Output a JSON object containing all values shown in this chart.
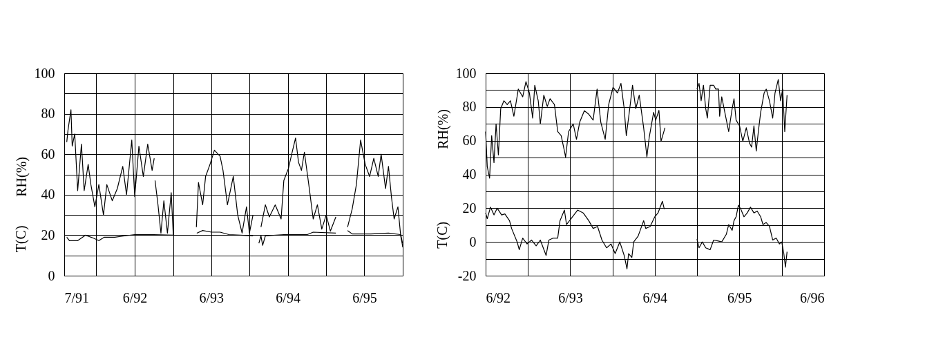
{
  "chart_data": [
    {
      "type": "line",
      "grid": true,
      "ylabel": "RH(%)",
      "annotations": [
        "T(C)"
      ],
      "xlim": [
        "1991-07",
        "1995-12"
      ],
      "xticks": [
        {
          "value": "1991-07",
          "label": "7/91"
        },
        {
          "value": "1991-12",
          "label": null
        },
        {
          "value": "1992-06",
          "label": "6/92"
        },
        {
          "value": "1992-12",
          "label": null
        },
        {
          "value": "1993-06",
          "label": "6/93"
        },
        {
          "value": "1993-12",
          "label": null
        },
        {
          "value": "1994-06",
          "label": "6/94"
        },
        {
          "value": "1994-12",
          "label": null
        },
        {
          "value": "1995-06",
          "label": "6/95"
        },
        {
          "value": "1995-12",
          "label": null
        }
      ],
      "ylim": [
        0,
        100
      ],
      "yticks": [
        0,
        {
          "value": 10,
          "label": null
        },
        20,
        {
          "value": 30,
          "label": null
        },
        40,
        {
          "value": 50,
          "label": null
        },
        60,
        {
          "value": 70,
          "label": null
        },
        80,
        {
          "value": 90,
          "label": null
        },
        100
      ],
      "series": [
        {
          "color": "#000000",
          "x": [
            "1991-07-13",
            "1991-07-19",
            "1991-08-02",
            "1991-08-08",
            "1991-08-20",
            "1991-09-03",
            "1991-09-21",
            "1991-10-04",
            "1991-10-23",
            "1991-11-05",
            "1991-11-24",
            "1991-12-13",
            "1992-01-04",
            "1992-01-20",
            "1992-02-15",
            "1992-03-10",
            "1992-04-05",
            "1992-04-23",
            "1992-05-18",
            "1992-06-01",
            "1992-06-21",
            "1992-07-12",
            "1992-08-02",
            "1992-08-23",
            "1992-09-02",
            "1992-09-04",
            "1992-09-06",
            "1992-09-20",
            "1992-10-04",
            "1992-10-18",
            "1992-11-04",
            "1992-11-22",
            "1992-12-02",
            "1993-01-15",
            "1993-03-22",
            "1993-04-01",
            "1993-04-21",
            "1993-05-05",
            "1993-05-26",
            "1993-06-16",
            "1993-07-13",
            "1993-07-27",
            "1993-08-17",
            "1993-09-14",
            "1993-10-05",
            "1993-10-26",
            "1993-11-16",
            "1993-11-30",
            "1993-12-17",
            "1994-01-05",
            "1994-01-24",
            "1994-02-14",
            "1994-03-05",
            "1994-04-02",
            "1994-04-30",
            "1994-05-13",
            "1994-06-04",
            "1994-06-24",
            "1994-07-08",
            "1994-07-22",
            "1994-08-05",
            "1994-08-19",
            "1994-09-09",
            "1994-09-30",
            "1994-10-20",
            "1994-11-10",
            "1994-12-01",
            "1994-12-21",
            "1995-01-16",
            "1995-02-15",
            "1995-03-13",
            "1995-04-04",
            "1995-04-24",
            "1995-05-14",
            "1995-06-05",
            "1995-06-26",
            "1995-07-16",
            "1995-08-06",
            "1995-08-20",
            "1995-09-10",
            "1995-09-24",
            "1995-10-08",
            "1995-10-21",
            "1995-11-08",
            "1995-11-20",
            "1995-11-30"
          ],
          "values": [
            66,
            72,
            82,
            64,
            70,
            42,
            65,
            42,
            55,
            45,
            34,
            45,
            30,
            45,
            37,
            43,
            54,
            40,
            67,
            39,
            64,
            49,
            65,
            52,
            58,
            null,
            47,
            35,
            21,
            37,
            21,
            41,
            20,
            null,
            24,
            46,
            35,
            49,
            55,
            62,
            59,
            52,
            35,
            49,
            30,
            21,
            34,
            21,
            30,
            null,
            24,
            35,
            29,
            35,
            28,
            47,
            53,
            62,
            68,
            56,
            52,
            61,
            45,
            28,
            35,
            23,
            30,
            22,
            29,
            null,
            24,
            33,
            45,
            67,
            55,
            49,
            58,
            49,
            60,
            43,
            54,
            39,
            28,
            34,
            21,
            16
          ]
        },
        {
          "color": "#000000",
          "x": [
            "1991-07-13",
            "1991-07-26",
            "1991-09-03",
            "1991-10-10",
            "1991-11-18",
            "1991-12-13",
            "1992-01-08",
            "1992-02-27",
            "1992-04-17",
            "1992-06-01",
            "1992-08-30",
            "1992-12-02",
            "1993-01-15",
            "1993-03-24",
            "1993-04-21",
            "1993-06-02",
            "1993-07-13",
            "1993-08-24",
            "1993-10-19",
            "1993-12-17",
            "1994-01-01",
            "1994-01-14",
            "1994-01-24",
            "1994-02-01",
            "1994-02-14",
            "1994-05-13",
            "1994-09-02",
            "1994-09-30",
            "1995-01-16",
            "1995-02-15",
            "1995-03-13",
            "1995-04-04",
            "1995-07-02",
            "1995-09-24",
            "1995-11-20",
            "1995-11-28",
            "1995-12-01"
          ],
          "values": [
            19,
            17.3,
            17.3,
            20,
            18.5,
            17.3,
            19,
            19,
            19.7,
            20.3,
            20.3,
            20,
            null,
            21,
            22.3,
            21.5,
            21.5,
            20.3,
            20,
            19.7,
            null,
            16,
            19.7,
            15,
            19.7,
            20.3,
            20.3,
            21.5,
            21,
            null,
            22.3,
            20.6,
            20.6,
            21,
            20.3,
            16,
            14
          ]
        }
      ]
    },
    {
      "type": "line",
      "grid": true,
      "ylabel": "RH(%)",
      "annotations": [
        "T(C)"
      ],
      "xlim": [
        "1992-06",
        "1996-06"
      ],
      "xticks": [
        {
          "value": "1992-06",
          "label": "6/92"
        },
        {
          "value": "1992-12",
          "label": null
        },
        {
          "value": "1993-06",
          "label": "6/93"
        },
        {
          "value": "1993-12",
          "label": null
        },
        {
          "value": "1994-06",
          "label": "6/94"
        },
        {
          "value": "1994-12",
          "label": null
        },
        {
          "value": "1995-06",
          "label": "6/95"
        },
        {
          "value": "1995-12",
          "label": null
        },
        {
          "value": "1996-06",
          "label": "6/96"
        }
      ],
      "ylim": [
        -20,
        100
      ],
      "yticks": [
        -20,
        {
          "value": -10,
          "label": null
        },
        0,
        {
          "value": 10,
          "label": null
        },
        20,
        {
          "value": 30,
          "label": null
        },
        40,
        {
          "value": 50,
          "label": null
        },
        60,
        {
          "value": 70,
          "label": null
        },
        80,
        {
          "value": 90,
          "label": null
        },
        100
      ],
      "series": [
        {
          "color": "#000000",
          "x": [
            "1992-06-01",
            "1992-06-08",
            "1992-06-18",
            "1992-06-27",
            "1992-07-07",
            "1992-07-16",
            "1992-07-26",
            "1992-08-05",
            "1992-08-19",
            "1992-09-02",
            "1992-09-16",
            "1992-10-01",
            "1992-10-20",
            "1992-11-08",
            "1992-11-22",
            "1992-12-07",
            "1992-12-21",
            "1992-12-30",
            "1993-01-14",
            "1993-01-23",
            "1993-02-07",
            "1993-02-22",
            "1993-03-06",
            "1993-03-25",
            "1993-04-08",
            "1993-04-23",
            "1993-05-07",
            "1993-05-12",
            "1993-05-25",
            "1993-06-14",
            "1993-06-28",
            "1993-07-12",
            "1993-08-01",
            "1993-08-20",
            "1993-09-08",
            "1993-09-25",
            "1993-10-11",
            "1993-10-30",
            "1993-11-14",
            "1993-12-03",
            "1993-12-22",
            "1994-01-06",
            "1994-01-20",
            "1994-01-29",
            "1994-02-13",
            "1994-02-25",
            "1994-03-11",
            "1994-03-26",
            "1994-04-14",
            "1994-04-28",
            "1994-05-08",
            "1994-05-27",
            "1994-06-05",
            "1994-06-19",
            "1994-06-28",
            "1994-07-15",
            "1994-09-15",
            "1994-11-30",
            "1994-12-09",
            "1994-12-18",
            "1994-12-28",
            "1995-01-07",
            "1995-01-14",
            "1995-01-26",
            "1995-02-10",
            "1995-02-19",
            "1995-03-03",
            "1995-03-08",
            "1995-03-17",
            "1995-04-01",
            "1995-04-16",
            "1995-05-01",
            "1995-05-09",
            "1995-05-18",
            "1995-06-02",
            "1995-06-16",
            "1995-07-01",
            "1995-07-15",
            "1995-07-24",
            "1995-08-03",
            "1995-08-13",
            "1995-08-22",
            "1995-09-01",
            "1995-09-16",
            "1995-09-25",
            "1995-10-09",
            "1995-10-23",
            "1995-11-02",
            "1995-11-16",
            "1995-11-26",
            "1995-12-05",
            "1995-12-14",
            "1995-12-24"
          ],
          "values": [
            65.4,
            44.7,
            37.8,
            63,
            47,
            70,
            51.6,
            79,
            83.7,
            81.4,
            83.7,
            74.5,
            90.6,
            86,
            95,
            88.3,
            73.4,
            92.9,
            83.7,
            70,
            87,
            80.3,
            84.9,
            81.4,
            65.4,
            63,
            53.9,
            50.3,
            65.4,
            70,
            60.8,
            71,
            77.8,
            75.7,
            72.2,
            90.6,
            71,
            60.8,
            81.4,
            91.7,
            88.3,
            94,
            79,
            63,
            79,
            92.9,
            79,
            87,
            67.7,
            50.5,
            62,
            76.8,
            72.2,
            78,
            59.6,
            67.7,
            null,
            90.6,
            94,
            83.7,
            92.9,
            79,
            73.4,
            92.9,
            92.9,
            90.6,
            90.6,
            74.5,
            86,
            75.7,
            65.4,
            79,
            84.9,
            72.2,
            68.8,
            59.6,
            67.7,
            58.5,
            56.2,
            68.8,
            53.9,
            65.4,
            76.8,
            88.3,
            90.6,
            83.7,
            73.4,
            88.3,
            96.3,
            83.7,
            90.6,
            65.4,
            87
          ]
        },
        {
          "color": "#000000",
          "x": [
            "1992-06-01",
            "1992-06-08",
            "1992-06-22",
            "1992-07-07",
            "1992-07-21",
            "1992-08-09",
            "1992-08-23",
            "1992-09-12",
            "1992-09-21",
            "1992-10-15",
            "1992-10-24",
            "1992-11-08",
            "1992-11-27",
            "1992-12-16",
            "1993-01-05",
            "1993-01-23",
            "1993-02-17",
            "1993-03-01",
            "1993-03-20",
            "1993-04-08",
            "1993-04-18",
            "1993-05-07",
            "1993-05-16",
            "1993-06-05",
            "1993-07-03",
            "1993-07-27",
            "1993-08-20",
            "1993-09-08",
            "1993-09-27",
            "1993-10-16",
            "1993-11-05",
            "1993-11-24",
            "1993-12-12",
            "1994-01-01",
            "1994-01-20",
            "1994-02-01",
            "1994-02-08",
            "1994-02-22",
            "1994-03-02",
            "1994-03-21",
            "1994-04-14",
            "1994-04-23",
            "1994-05-12",
            "1994-06-01",
            "1994-06-15",
            "1994-07-04",
            "1994-07-12",
            "1994-09-15",
            "1994-11-30",
            "1994-12-09",
            "1994-12-23",
            "1995-01-07",
            "1995-01-26",
            "1995-02-10",
            "1995-02-28",
            "1995-03-17",
            "1995-04-06",
            "1995-04-16",
            "1995-05-01",
            "1995-05-09",
            "1995-05-18",
            "1995-05-28",
            "1995-06-07",
            "1995-06-21",
            "1995-07-05",
            "1995-07-19",
            "1995-08-03",
            "1995-08-17",
            "1995-09-01",
            "1995-09-11",
            "1995-09-25",
            "1995-10-09",
            "1995-10-23",
            "1995-11-07",
            "1995-11-21",
            "1995-12-01",
            "1995-12-10",
            "1995-12-17",
            "1995-12-24"
          ],
          "values": [
            17.2,
            13.8,
            20.6,
            16,
            20,
            16,
            16.6,
            12.6,
            8,
            0,
            -4.6,
            2.3,
            -1.2,
            1.1,
            -2.3,
            1.1,
            -8,
            1.1,
            2.3,
            2.3,
            12.6,
            18.9,
            10.3,
            13.8,
            18.9,
            17.2,
            12.6,
            8,
            9.2,
            1.1,
            -3.5,
            -1.2,
            -6.9,
            0,
            -8,
            -16,
            -6.9,
            -9.2,
            0,
            3.4,
            12.6,
            8,
            9.2,
            14.9,
            17.2,
            24.1,
            19.5,
            null,
            1.7,
            -3.5,
            0,
            -3.5,
            -4.6,
            1.1,
            0.6,
            0,
            4.6,
            10.3,
            6.9,
            12.6,
            14.9,
            21.8,
            19.5,
            14.9,
            17.2,
            20.6,
            17.2,
            18.3,
            14.9,
            10.3,
            11.5,
            9.2,
            1.1,
            2.3,
            -1.2,
            0,
            -6.9,
            -15,
            -5.8
          ]
        }
      ]
    }
  ]
}
